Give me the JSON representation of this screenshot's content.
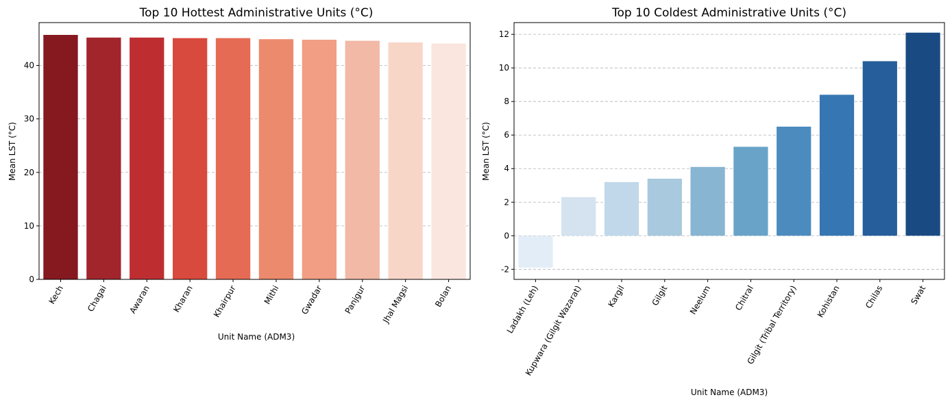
{
  "chart_data": [
    {
      "type": "bar",
      "title": "Top 10 Hottest Administrative Units (°C)",
      "xlabel": "Unit Name (ADM3)",
      "ylabel": "Mean LST (°C)",
      "categories": [
        "Kech",
        "Chagai",
        "Awaran",
        "Kharan",
        "Khairpur",
        "Mithi",
        "Gwadar",
        "Panjgur",
        "Jhal Magsi",
        "Bolan"
      ],
      "values": [
        45.7,
        45.2,
        45.2,
        45.1,
        45.1,
        44.9,
        44.8,
        44.6,
        44.3,
        44.1
      ],
      "colors": [
        "#86181f",
        "#a2252b",
        "#be2e31",
        "#d84a3d",
        "#e66b54",
        "#ec8a6d",
        "#f19e84",
        "#f2b9a6",
        "#f8d6c7",
        "#fae6df"
      ],
      "ylim": [
        0,
        48
      ],
      "yticks": [
        0,
        10,
        20,
        30,
        40
      ],
      "grid": "y-dashed",
      "palette": "Reds_r"
    },
    {
      "type": "bar",
      "title": "Top 10 Coldest Administrative Units (°C)",
      "xlabel": "Unit Name (ADM3)",
      "ylabel": "Mean LST (°C)",
      "categories": [
        "Ladakh (Leh)",
        "Kupwara (Gilgit Wazarat)",
        "Kargil",
        "Gilgit",
        "Neelum",
        "Chitral",
        "Gilgit (Tribal Territory)",
        "Kohistan",
        "Chilas",
        "Swat"
      ],
      "values": [
        -1.9,
        2.3,
        3.2,
        3.4,
        4.1,
        5.3,
        6.5,
        8.4,
        10.4,
        12.1
      ],
      "colors": [
        "#e3edf7",
        "#d5e3f0",
        "#c1d8ea",
        "#a8c9de",
        "#88b5d2",
        "#69a3c8",
        "#4c8bbe",
        "#3676b3",
        "#255e9a",
        "#1a4a82"
      ],
      "ylim": [
        -2.6,
        12.7
      ],
      "yticks": [
        -2,
        0,
        2,
        4,
        6,
        8,
        10,
        12
      ],
      "grid": "y-dashed",
      "palette": "Blues"
    }
  ]
}
